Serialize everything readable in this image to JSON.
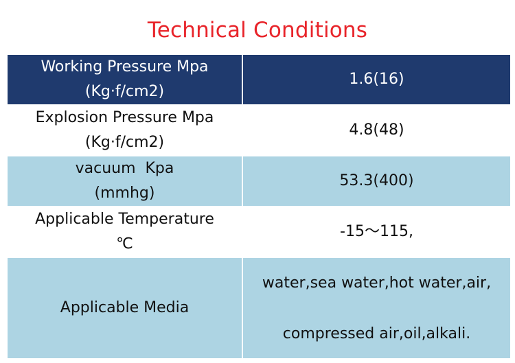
{
  "title": "Technical Conditions",
  "rows": [
    {
      "label_line1": "Working Pressure Mpa",
      "label_line2": "(Kg·f/cm2)",
      "value": "1.6(16)"
    },
    {
      "label_line1": "Explosion Pressure Mpa",
      "label_line2": "(Kg·f/cm2)",
      "value": "4.8(48)"
    },
    {
      "label_line1": "vacuum  Kpa",
      "label_line2": "(mmhg)",
      "value": "53.3(400)"
    },
    {
      "label_line1": "Applicable Temperature",
      "label_line2": "℃",
      "value": "-15～115,"
    },
    {
      "label_line1": "Applicable Media",
      "value_line1": "water,sea water,hot water,air,",
      "value_line2": "compressed air,oil,alkali."
    }
  ],
  "colors": {
    "title": "#e8242a",
    "header_bg": "#1f3a6e",
    "header_text": "#ffffff",
    "band_bg": "#add4e3",
    "plain_bg": "#ffffff"
  }
}
